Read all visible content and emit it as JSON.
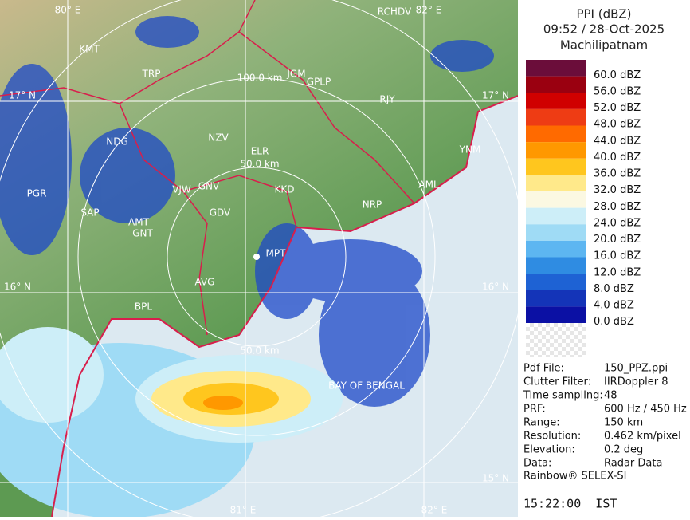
{
  "header": {
    "product": "PPI (dBZ)",
    "datetime": "09:52 / 28-Oct-2025",
    "station": "Machilipatnam"
  },
  "legend": {
    "entries": [
      {
        "label": "60.0 dBZ",
        "color": "#6b0d3a"
      },
      {
        "label": "56.0 dBZ",
        "color": "#9a0010"
      },
      {
        "label": "52.0 dBZ",
        "color": "#d00000"
      },
      {
        "label": "48.0 dBZ",
        "color": "#ee3c14"
      },
      {
        "label": "44.0 dBZ",
        "color": "#ff6a00"
      },
      {
        "label": "40.0 dBZ",
        "color": "#ff9800"
      },
      {
        "label": "36.0 dBZ",
        "color": "#ffc61e"
      },
      {
        "label": "32.0 dBZ",
        "color": "#ffe98a"
      },
      {
        "label": "28.0 dBZ",
        "color": "#fbf8e2"
      },
      {
        "label": "24.0 dBZ",
        "color": "#cdeef8"
      },
      {
        "label": "20.0 dBZ",
        "color": "#9fdbf5"
      },
      {
        "label": "16.0 dBZ",
        "color": "#5db6f1"
      },
      {
        "label": "12.0 dBZ",
        "color": "#2f8ce2"
      },
      {
        "label": "8.0 dBZ",
        "color": "#1e62d4"
      },
      {
        "label": "4.0 dBZ",
        "color": "#1434b8"
      },
      {
        "label": "0.0 dBZ",
        "color": "#0b10a4"
      }
    ]
  },
  "info": {
    "rows": [
      [
        "Pdf File:",
        "150_PPZ.ppi"
      ],
      [
        "Clutter Filter:",
        "IIRDoppler 8"
      ],
      [
        "Time sampling:",
        "48"
      ],
      [
        "PRF:",
        "600 Hz / 450 Hz"
      ],
      [
        "Range:",
        "150 km"
      ],
      [
        "Resolution:",
        "0.462 km/pixel"
      ],
      [
        "Elevation:",
        "0.2 deg"
      ],
      [
        "Data:",
        "Radar Data"
      ]
    ]
  },
  "footer": {
    "vendor": "Rainbow® SELEX-SI",
    "time": "15:22:00  IST"
  },
  "map": {
    "places": [
      "KMT",
      "TRP",
      "JGM",
      "GPLP",
      "RJY",
      "NDG",
      "NZV",
      "ELR",
      "YNM",
      "GNV",
      "VJW",
      "KKD",
      "AML",
      "PGR",
      "SAP",
      "GDV",
      "NRP",
      "AMT",
      "GNT",
      "MPT",
      "AVG",
      "BPL",
      "RCHDV"
    ],
    "range_labels": [
      "100.0 km",
      "50.0 km",
      "50.0 km"
    ],
    "grid_labels": [
      "80° E",
      "82° E",
      "17° N",
      "17° N",
      "16° N",
      "16° N",
      "15° N",
      "81° E",
      "82° E"
    ],
    "sea_label": "BAY OF BENGAL"
  }
}
